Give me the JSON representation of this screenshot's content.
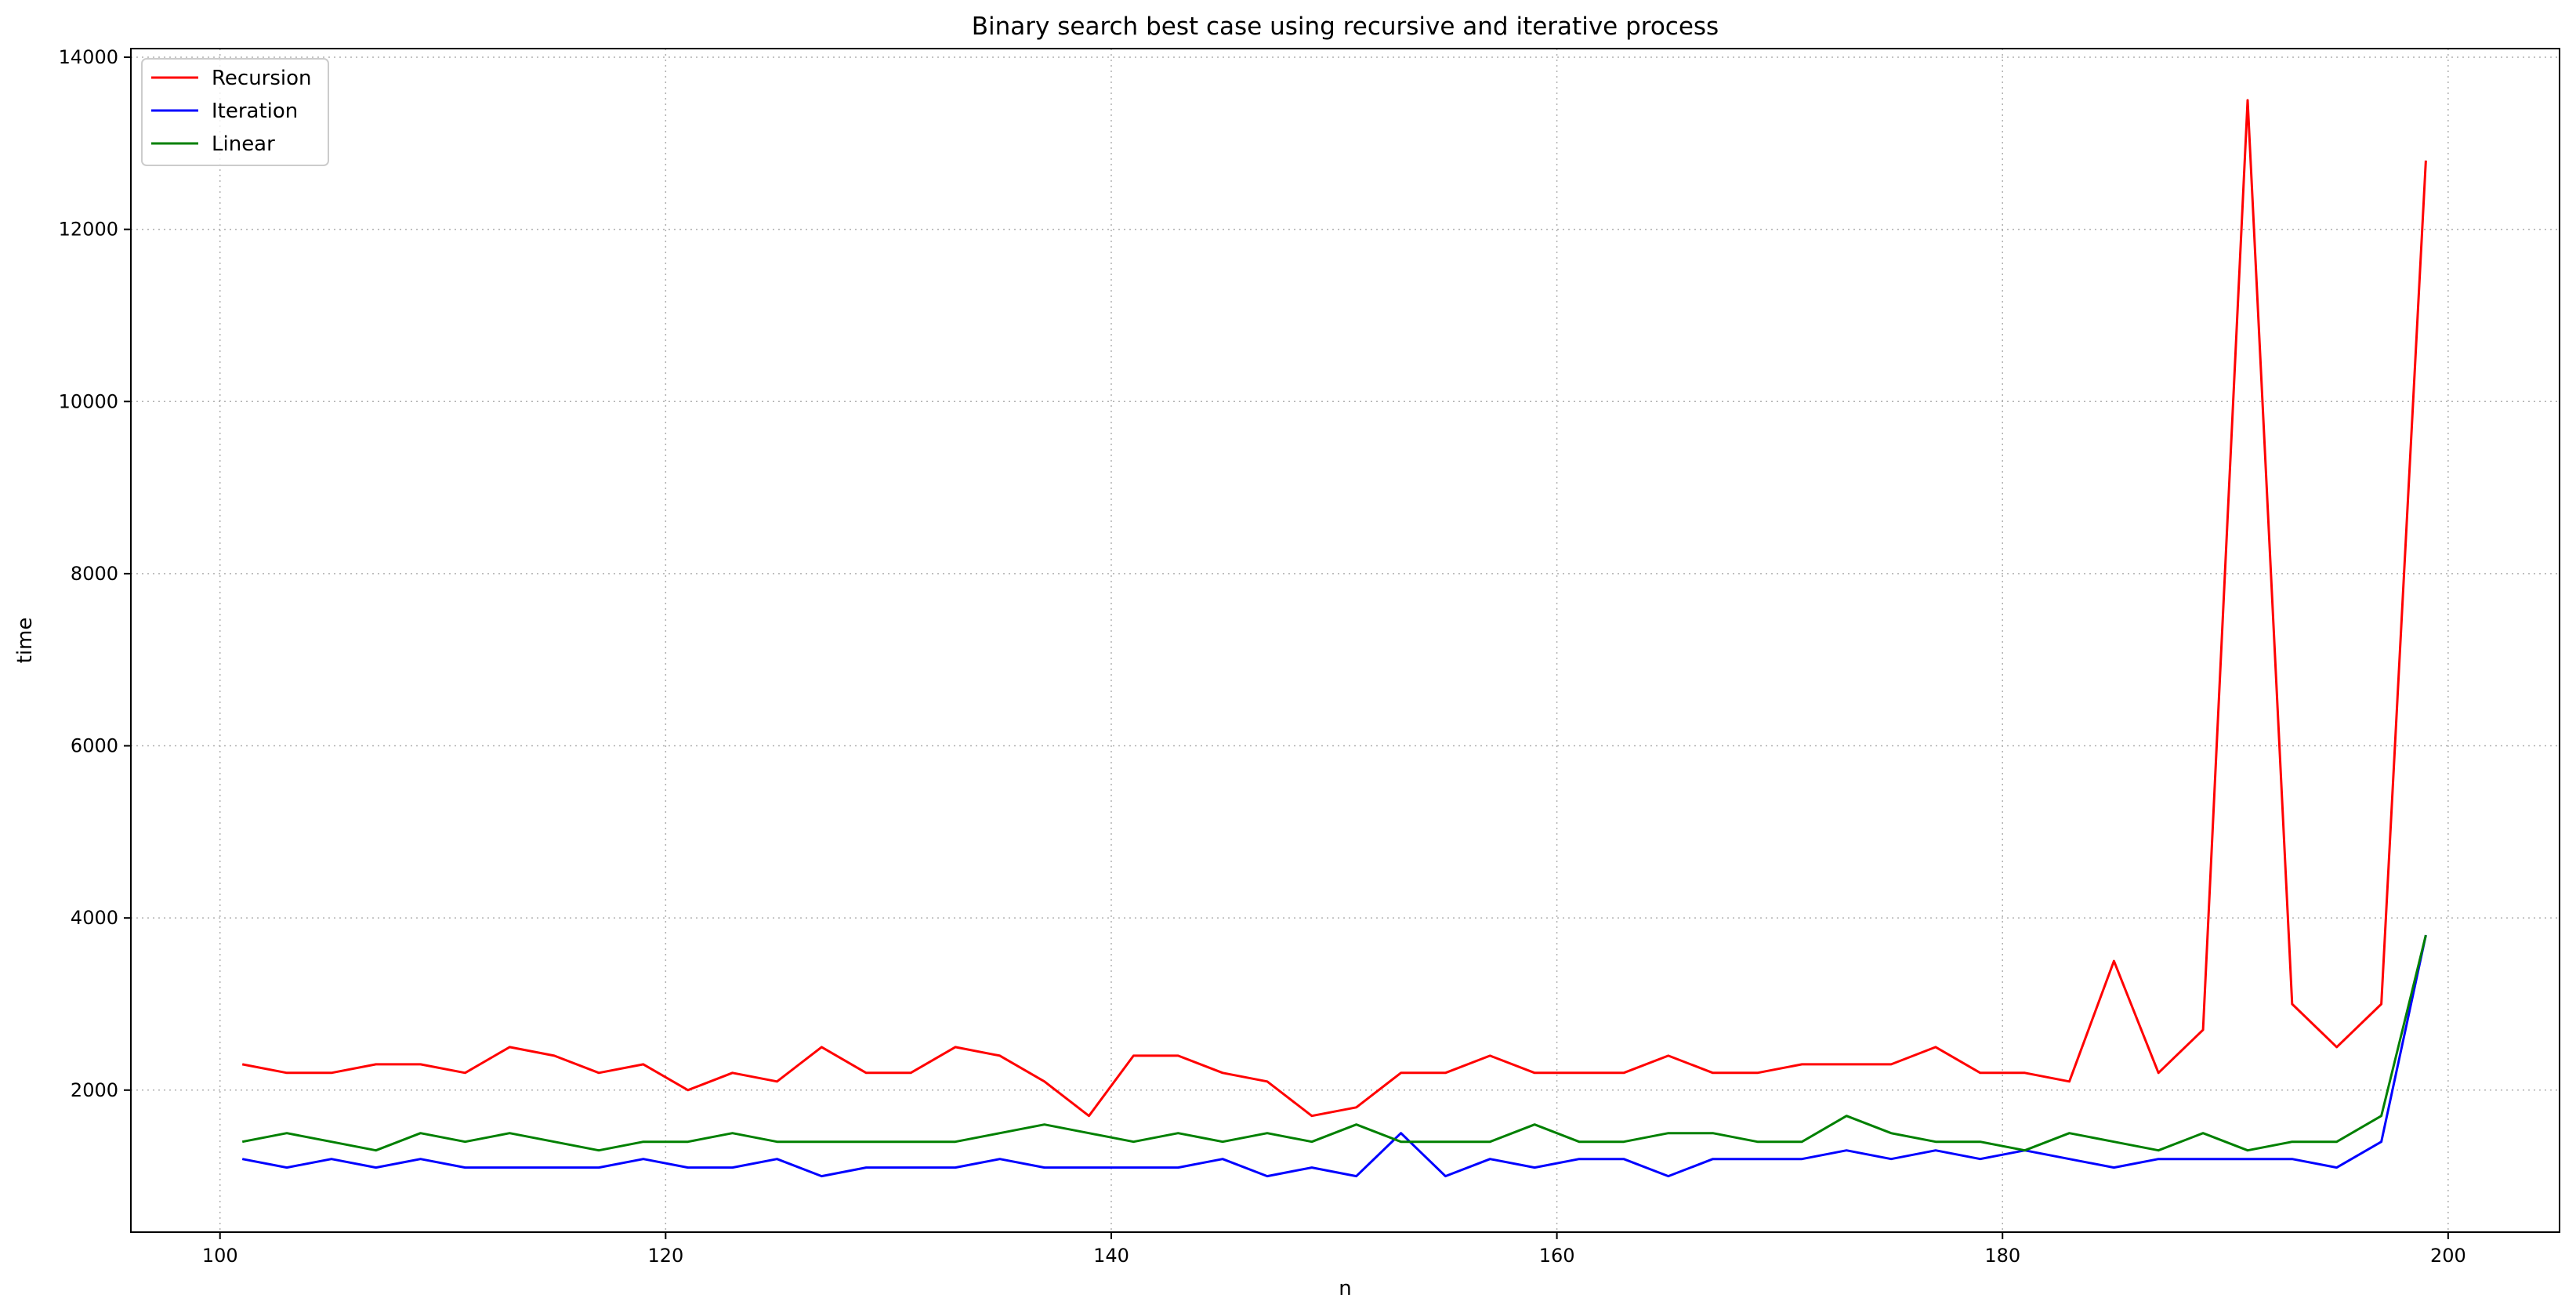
{
  "chart_data": {
    "type": "line",
    "title": "Binary search best case using recursive and iterative process",
    "xlabel": "n",
    "ylabel": "time",
    "xlim": [
      96,
      205
    ],
    "ylim": [
      350,
      14100
    ],
    "xticks": [
      100,
      120,
      140,
      160,
      180,
      200
    ],
    "yticks": [
      2000,
      4000,
      6000,
      8000,
      10000,
      12000,
      14000
    ],
    "grid": true,
    "legend_position": "top-left",
    "x": [
      101,
      103,
      105,
      107,
      109,
      111,
      113,
      115,
      117,
      119,
      121,
      123,
      125,
      127,
      129,
      131,
      133,
      135,
      137,
      139,
      141,
      143,
      145,
      147,
      149,
      151,
      153,
      155,
      157,
      159,
      161,
      163,
      165,
      167,
      169,
      171,
      173,
      175,
      177,
      179,
      181,
      183,
      185,
      187,
      189,
      191,
      193,
      195,
      197,
      199
    ],
    "series": [
      {
        "name": "Recursion",
        "color": "#ff0000",
        "values": [
          2300,
          2200,
          2200,
          2300,
          2300,
          2200,
          2500,
          2400,
          2200,
          2300,
          2000,
          2200,
          2100,
          2500,
          2200,
          2200,
          2500,
          2400,
          2100,
          1700,
          2400,
          2400,
          2200,
          2100,
          1700,
          1800,
          2200,
          2200,
          2400,
          2200,
          2200,
          2200,
          2400,
          2200,
          2200,
          2300,
          2300,
          2300,
          2500,
          2200,
          2200,
          2100,
          3500,
          2200,
          2700,
          13500,
          3000,
          2500,
          3000,
          12800
        ]
      },
      {
        "name": "Iteration",
        "color": "#0000ff",
        "values": [
          1200,
          1100,
          1200,
          1100,
          1200,
          1100,
          1100,
          1100,
          1100,
          1200,
          1100,
          1100,
          1200,
          1000,
          1100,
          1100,
          1100,
          1200,
          1100,
          1100,
          1100,
          1100,
          1200,
          1000,
          1100,
          1000,
          1500,
          1000,
          1200,
          1100,
          1200,
          1200,
          1000,
          1200,
          1200,
          1200,
          1300,
          1200,
          1300,
          1200,
          1300,
          1200,
          1100,
          1200,
          1200,
          1200,
          1200,
          1100,
          1400,
          3800
        ]
      },
      {
        "name": "Linear",
        "color": "#008000",
        "values": [
          1400,
          1500,
          1400,
          1300,
          1500,
          1400,
          1500,
          1400,
          1300,
          1400,
          1400,
          1500,
          1400,
          1400,
          1400,
          1400,
          1400,
          1500,
          1600,
          1500,
          1400,
          1500,
          1400,
          1500,
          1400,
          1600,
          1400,
          1400,
          1400,
          1600,
          1400,
          1400,
          1500,
          1500,
          1400,
          1400,
          1700,
          1500,
          1400,
          1400,
          1300,
          1500,
          1400,
          1300,
          1500,
          1300,
          1400,
          1400,
          1700,
          3800
        ]
      }
    ]
  }
}
